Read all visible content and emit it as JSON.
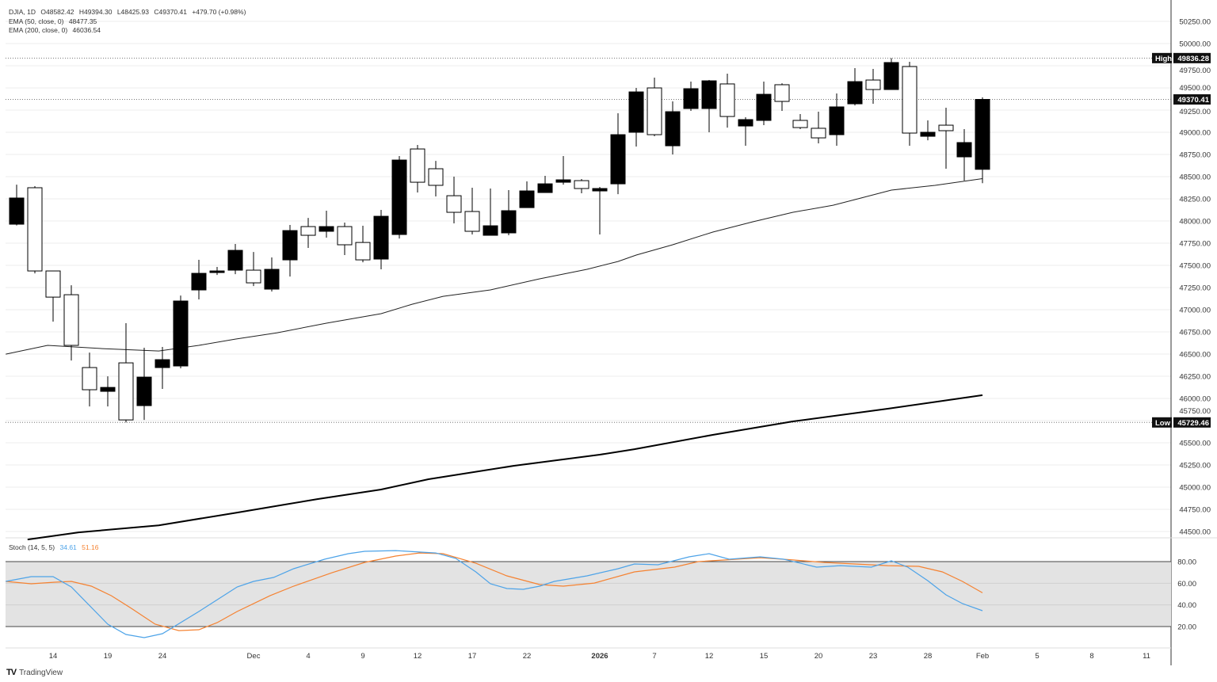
{
  "header": {
    "symbol": "DJIA, 1D",
    "open": "O48582.42",
    "high": "H49394.30",
    "low": "L48425.93",
    "close": "C49370.41",
    "change": "+479.70 (+0.98%)",
    "ema50_label": "EMA (50, close, 0)",
    "ema50_value": "48477.35",
    "ema200_label": "EMA (200, close, 0)",
    "ema200_value": "46036.54",
    "stoch_label": "Stoch (14, 5, 5)",
    "stoch_k_value": "34.61",
    "stoch_d_value": "51.16"
  },
  "footer": {
    "brand": "TradingView"
  },
  "colors": {
    "up": "#000000",
    "down": "#ffffff",
    "stoch_k": "#4da3e8",
    "stoch_d": "#f58231",
    "band": "#e3e3e3"
  },
  "chart_data": {
    "type": "candlestick",
    "title": "DJIA, 1D",
    "price_axis": {
      "min": 44500,
      "max": 50250,
      "step": 250,
      "labels": [
        "50250.00",
        "50000.00",
        "49750.00",
        "49500.00",
        "49250.00",
        "49000.00",
        "48750.00",
        "48500.00",
        "48250.00",
        "48000.00",
        "47750.00",
        "47500.00",
        "47250.00",
        "47000.00",
        "46750.00",
        "46500.00",
        "46250.00",
        "46000.00",
        "45750.00",
        "45500.00",
        "45250.00",
        "45000.00",
        "44750.00",
        "44500.00"
      ]
    },
    "markers": [
      {
        "label": "High",
        "value_text": "49836.28",
        "value": 49836.28
      },
      {
        "label": "",
        "value_text": "49370.41",
        "value": 49370.41
      },
      {
        "label": "Low",
        "value_text": "45729.46",
        "value": 45729.46
      }
    ],
    "x_ticks": [
      {
        "label": "14",
        "index": 2
      },
      {
        "label": "19",
        "index": 5
      },
      {
        "label": "24",
        "index": 8
      },
      {
        "label": "Dec",
        "index": 13
      },
      {
        "label": "4",
        "index": 16
      },
      {
        "label": "9",
        "index": 19
      },
      {
        "label": "12",
        "index": 22
      },
      {
        "label": "17",
        "index": 25
      },
      {
        "label": "22",
        "index": 28
      },
      {
        "label": "2026",
        "index": 32
      },
      {
        "label": "7",
        "index": 35
      },
      {
        "label": "12",
        "index": 38
      },
      {
        "label": "15",
        "index": 41
      },
      {
        "label": "20",
        "index": 44
      },
      {
        "label": "23",
        "index": 47
      },
      {
        "label": "28",
        "index": 50
      },
      {
        "label": "Feb",
        "index": 53
      },
      {
        "label": "5",
        "index": 56
      },
      {
        "label": "8",
        "index": 59
      },
      {
        "label": "11",
        "index": 62
      }
    ],
    "candles_ohlc": [
      [
        47964,
        48410,
        47950,
        48259
      ],
      [
        48375,
        48393,
        47410,
        47437
      ],
      [
        47437,
        47437,
        46866,
        47142
      ],
      [
        47169,
        47276,
        46428,
        46598
      ],
      [
        46348,
        46517,
        45910,
        46098
      ],
      [
        46080,
        46249,
        45910,
        46124
      ],
      [
        46401,
        46848,
        45729.46,
        45758
      ],
      [
        45919,
        46571,
        45758,
        46240
      ],
      [
        46348,
        46580,
        46107,
        46437
      ],
      [
        46366,
        47160,
        46339,
        47098
      ],
      [
        47223,
        47562,
        47116,
        47410
      ],
      [
        47419,
        47482,
        47392,
        47437
      ],
      [
        47446,
        47741,
        47401,
        47669
      ],
      [
        47446,
        47651,
        47267,
        47303
      ],
      [
        47232,
        47589,
        47205,
        47455
      ],
      [
        47562,
        47955,
        47374,
        47892
      ],
      [
        47937,
        48035,
        47696,
        47839
      ],
      [
        47884,
        48116,
        47812,
        47937
      ],
      [
        47937,
        47982,
        47616,
        47732
      ],
      [
        47758,
        47946,
        47535,
        47562
      ],
      [
        47571,
        48125,
        47455,
        48053
      ],
      [
        47848,
        48732,
        47803,
        48687
      ],
      [
        48812,
        48857,
        48321,
        48437
      ],
      [
        48589,
        48678,
        48277,
        48402
      ],
      [
        48285,
        48500,
        47973,
        48098
      ],
      [
        48107,
        48375,
        47848,
        47884
      ],
      [
        47839,
        48366,
        47839,
        47946
      ],
      [
        47866,
        48348,
        47839,
        48116
      ],
      [
        48151,
        48446,
        48151,
        48339
      ],
      [
        48321,
        48509,
        48321,
        48419
      ],
      [
        48437,
        48732,
        48410,
        48464
      ],
      [
        48455,
        48473,
        48312,
        48366
      ],
      [
        48339,
        48384,
        47848,
        48366
      ],
      [
        48419,
        49214,
        48303,
        48973
      ],
      [
        49000,
        49500,
        48839,
        49455
      ],
      [
        49500,
        49616,
        48955,
        48973
      ],
      [
        48848,
        49348,
        48750,
        49232
      ],
      [
        49268,
        49571,
        49241,
        49491
      ],
      [
        49268,
        49589,
        49000,
        49580
      ],
      [
        49545,
        49661,
        49053,
        49178
      ],
      [
        49071,
        49170,
        48848,
        49143
      ],
      [
        49134,
        49571,
        49080,
        49428
      ],
      [
        49536,
        49553,
        49241,
        49348
      ],
      [
        49134,
        49205,
        49036,
        49053
      ],
      [
        49045,
        49232,
        48875,
        48937
      ],
      [
        48973,
        49437,
        48848,
        49286
      ],
      [
        49321,
        49723,
        49303,
        49571
      ],
      [
        49589,
        49714,
        49321,
        49482
      ],
      [
        49482,
        49836.28,
        49482,
        49786
      ],
      [
        49741,
        49795,
        48848,
        48991
      ],
      [
        48955,
        49134,
        48910,
        49000
      ],
      [
        49080,
        49277,
        48589,
        49018
      ],
      [
        48723,
        49036,
        48455,
        48884
      ],
      [
        48582.42,
        49394.3,
        48425.93,
        49370.41
      ]
    ],
    "ema50": [
      [
        -0.6,
        46499
      ],
      [
        1.7,
        46598
      ],
      [
        4.7,
        46562
      ],
      [
        7.8,
        46535
      ],
      [
        10,
        46598
      ],
      [
        12,
        46669
      ],
      [
        14.3,
        46740
      ],
      [
        17,
        46848
      ],
      [
        20,
        46955
      ],
      [
        21.7,
        47062
      ],
      [
        23.4,
        47151
      ],
      [
        26,
        47223
      ],
      [
        28.7,
        47348
      ],
      [
        31.3,
        47455
      ],
      [
        33,
        47544
      ],
      [
        34,
        47616
      ],
      [
        36,
        47732
      ],
      [
        38.2,
        47875
      ],
      [
        40.4,
        47991
      ],
      [
        42.6,
        48098
      ],
      [
        44.8,
        48178
      ],
      [
        46,
        48241
      ],
      [
        48,
        48348
      ],
      [
        50.4,
        48402
      ],
      [
        53,
        48477.35
      ]
    ],
    "ema200": [
      [
        0.6,
        44410
      ],
      [
        3.4,
        44490
      ],
      [
        7.8,
        44570
      ],
      [
        12.1,
        44713
      ],
      [
        16.5,
        44865
      ],
      [
        20,
        44973
      ],
      [
        22.6,
        45089
      ],
      [
        27.3,
        45241
      ],
      [
        32,
        45366
      ],
      [
        33.9,
        45428
      ],
      [
        38.2,
        45589
      ],
      [
        42.6,
        45741
      ],
      [
        47.8,
        45884
      ],
      [
        53,
        46036.54
      ]
    ],
    "stoch": {
      "axis_labels": [
        "80.00",
        "60.00",
        "40.00",
        "20.00"
      ],
      "axis_values": [
        80,
        60,
        40,
        20
      ],
      "band": [
        20,
        80
      ],
      "k": [
        [
          -0.6,
          61.7
        ],
        [
          0.8,
          66.1
        ],
        [
          2,
          66.1
        ],
        [
          3,
          56.6
        ],
        [
          5,
          22.2
        ],
        [
          6,
          12.7
        ],
        [
          7,
          9.8
        ],
        [
          8,
          13.4
        ],
        [
          10,
          33.9
        ],
        [
          12.1,
          56.6
        ],
        [
          13,
          61.7
        ],
        [
          14.1,
          65.4
        ],
        [
          15.2,
          73.4
        ],
        [
          16.9,
          82.2
        ],
        [
          18.2,
          87.3
        ],
        [
          19.1,
          89.5
        ],
        [
          20.8,
          90.2
        ],
        [
          23,
          88
        ],
        [
          24.1,
          82.9
        ],
        [
          25.2,
          70.5
        ],
        [
          26,
          59.5
        ],
        [
          26.9,
          55.1
        ],
        [
          27.8,
          54.4
        ],
        [
          28.7,
          57.3
        ],
        [
          29.5,
          61.7
        ],
        [
          31.3,
          66.8
        ],
        [
          33,
          73.4
        ],
        [
          33.9,
          77.8
        ],
        [
          35.2,
          77.1
        ],
        [
          36.9,
          84.4
        ],
        [
          38,
          87.3
        ],
        [
          39.1,
          82.2
        ],
        [
          40.8,
          84.4
        ],
        [
          42.1,
          82.2
        ],
        [
          43.9,
          74.9
        ],
        [
          45.2,
          76.3
        ],
        [
          46.9,
          74.9
        ],
        [
          48,
          80.7
        ],
        [
          48.9,
          74.9
        ],
        [
          50,
          62.4
        ],
        [
          51,
          49.3
        ],
        [
          51.9,
          41.2
        ],
        [
          53,
          34.61
        ]
      ],
      "d": [
        [
          -0.6,
          61.7
        ],
        [
          0.8,
          59.5
        ],
        [
          2.1,
          61
        ],
        [
          3,
          61.7
        ],
        [
          4.1,
          57.3
        ],
        [
          5.2,
          48.5
        ],
        [
          6.3,
          36.8
        ],
        [
          7.6,
          22.2
        ],
        [
          8.9,
          16.3
        ],
        [
          10,
          17.1
        ],
        [
          11,
          23.6
        ],
        [
          12.1,
          33.9
        ],
        [
          13.9,
          48.5
        ],
        [
          15.2,
          57.3
        ],
        [
          17.3,
          69.7
        ],
        [
          19.1,
          79.3
        ],
        [
          20.8,
          85.1
        ],
        [
          22.1,
          88
        ],
        [
          23.4,
          87.3
        ],
        [
          25.2,
          78.5
        ],
        [
          26.9,
          66.8
        ],
        [
          28.7,
          58.8
        ],
        [
          30,
          57.3
        ],
        [
          31.7,
          60.2
        ],
        [
          33.9,
          70.5
        ],
        [
          36.1,
          74.9
        ],
        [
          37.4,
          80
        ],
        [
          39.5,
          82.2
        ],
        [
          40.8,
          83.6
        ],
        [
          42.6,
          81.5
        ],
        [
          44.3,
          79.3
        ],
        [
          46,
          77.8
        ],
        [
          47.8,
          76.3
        ],
        [
          49.5,
          75.6
        ],
        [
          50.8,
          70.5
        ],
        [
          51.9,
          61.7
        ],
        [
          53,
          51.16
        ]
      ]
    }
  }
}
